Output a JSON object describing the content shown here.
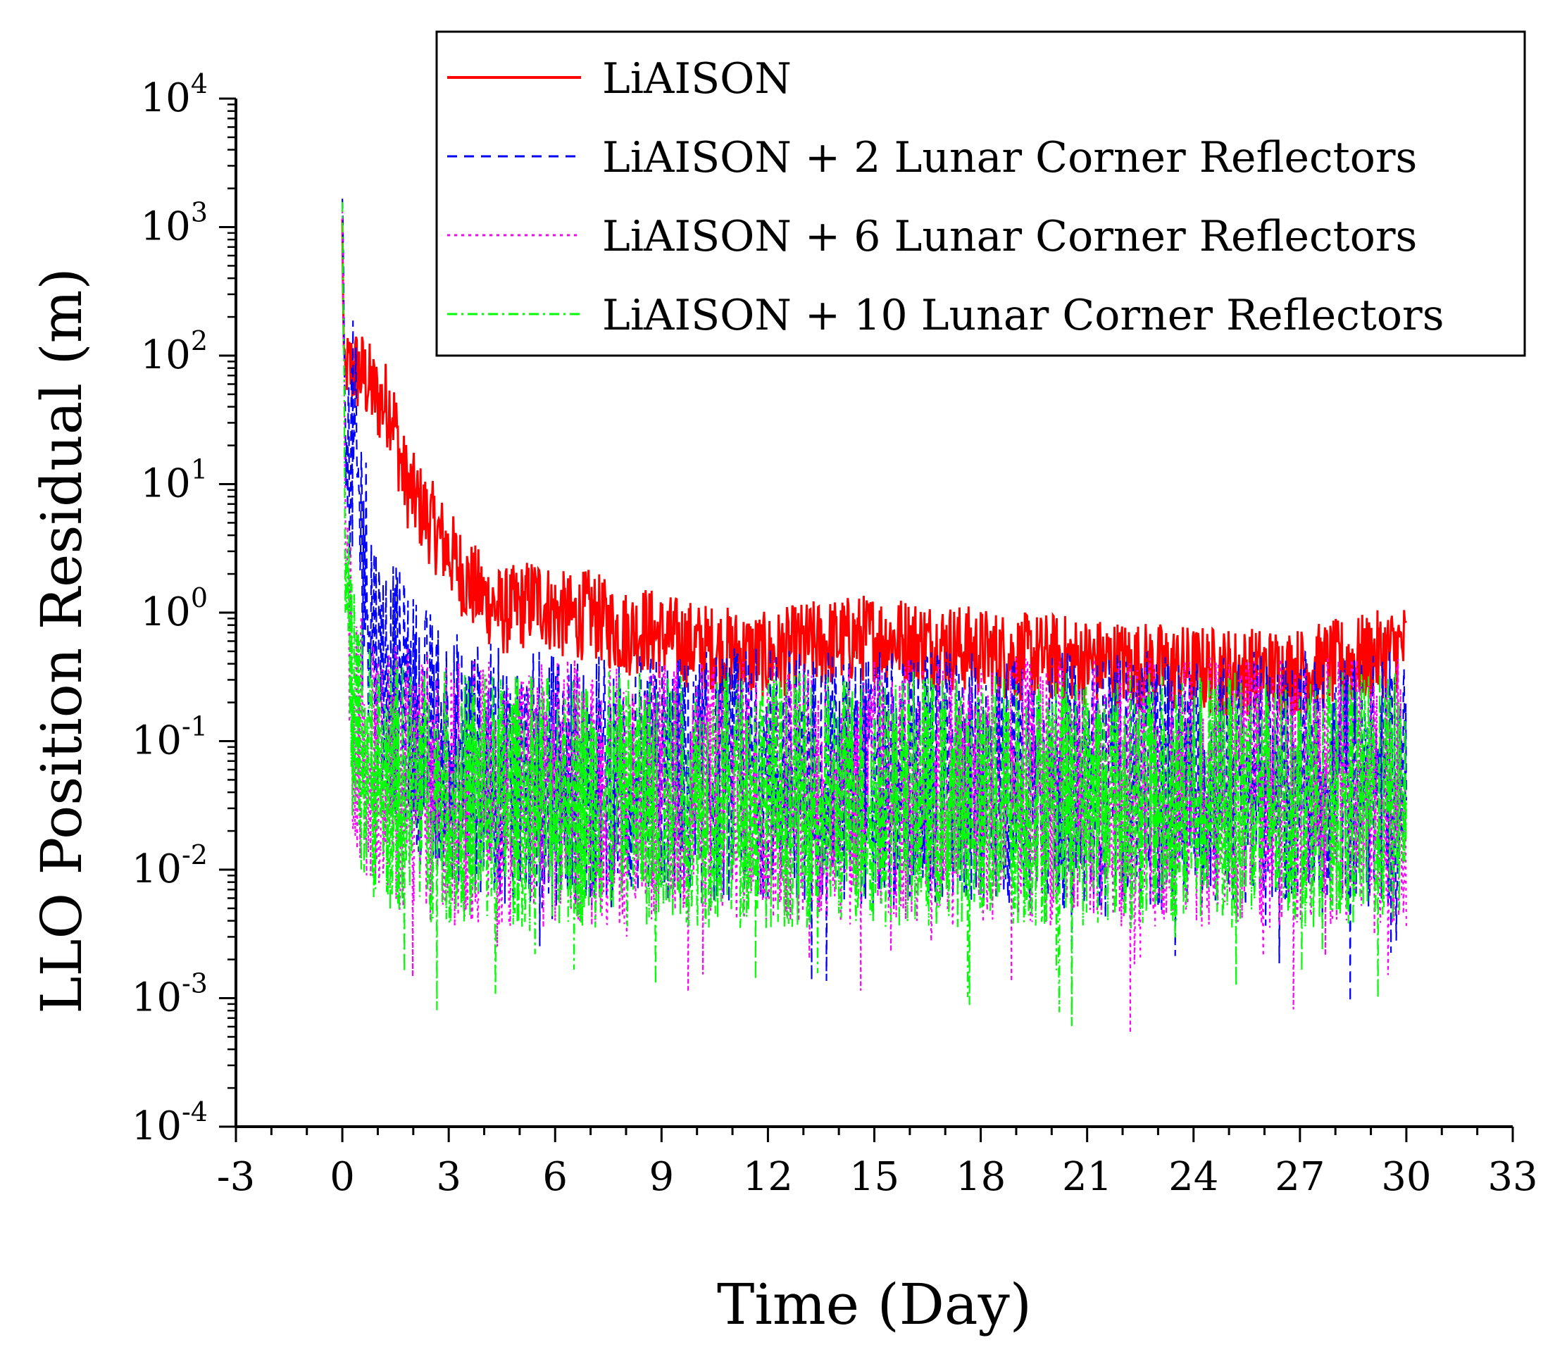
{
  "chart_data": {
    "type": "line",
    "title": "",
    "xlabel": "Time (Day)",
    "ylabel": "LLO Position Residual (m)",
    "xscale": "linear",
    "yscale": "log",
    "xlim": [
      -3,
      33
    ],
    "ylim": [
      0.0001,
      10000
    ],
    "xticks": [
      -3,
      0,
      3,
      6,
      9,
      12,
      15,
      18,
      21,
      24,
      27,
      30,
      33
    ],
    "xtick_labels": [
      "-3",
      "0",
      "3",
      "6",
      "9",
      "12",
      "15",
      "18",
      "21",
      "24",
      "27",
      "30",
      "33"
    ],
    "yticks": [
      {
        "value": 0.0001,
        "base": "10",
        "exp": "-4"
      },
      {
        "value": 0.001,
        "base": "10",
        "exp": "-3"
      },
      {
        "value": 0.01,
        "base": "10",
        "exp": "-2"
      },
      {
        "value": 0.1,
        "base": "10",
        "exp": "-1"
      },
      {
        "value": 1,
        "base": "10",
        "exp": "0"
      },
      {
        "value": 10,
        "base": "10",
        "exp": "1"
      },
      {
        "value": 100,
        "base": "10",
        "exp": "2"
      },
      {
        "value": 1000,
        "base": "10",
        "exp": "3"
      },
      {
        "value": 10000,
        "base": "10",
        "exp": "4"
      }
    ],
    "grid": false,
    "legend_position": "top-right",
    "series": [
      {
        "name": "LiAISON",
        "color": "#ff0000",
        "dash": "solid",
        "x": [
          0,
          0.05,
          0.3,
          0.6,
          1.0,
          1.4,
          1.7,
          2.0,
          2.5,
          3.0,
          3.5,
          4.0,
          4.5,
          5.0,
          5.5,
          6.0,
          6.5,
          7.0,
          7.5,
          8.0,
          8.5,
          9.0,
          10,
          11,
          12,
          13,
          14,
          15,
          16,
          17,
          18,
          19,
          20,
          21,
          22,
          23,
          24,
          25,
          26,
          27,
          28,
          29,
          30
        ],
        "values": [
          1000,
          70,
          80,
          70,
          45,
          40,
          12,
          8,
          5,
          3,
          1.8,
          1.3,
          1.0,
          1.1,
          1.3,
          1.0,
          0.9,
          1.0,
          0.8,
          0.7,
          0.75,
          0.65,
          0.55,
          0.5,
          0.45,
          0.55,
          0.6,
          0.65,
          0.6,
          0.55,
          0.5,
          0.45,
          0.45,
          0.42,
          0.4,
          0.38,
          0.36,
          0.35,
          0.35,
          0.35,
          0.4,
          0.45,
          0.55
        ]
      },
      {
        "name": "LiAISON + 2 Lunar Corner Reflectors",
        "color": "#0000ff",
        "dash": "dashed",
        "x": [
          0,
          0.1,
          0.3,
          0.6,
          1.0,
          1.5,
          2,
          3,
          4,
          5,
          6,
          8,
          10,
          12,
          14,
          16,
          18,
          20,
          22,
          24,
          26,
          28,
          30
        ],
        "values": [
          2000,
          15,
          20,
          3,
          0.4,
          0.25,
          0.15,
          0.08,
          0.06,
          0.05,
          0.05,
          0.05,
          0.05,
          0.06,
          0.05,
          0.05,
          0.05,
          0.05,
          0.05,
          0.05,
          0.05,
          0.05,
          0.05
        ]
      },
      {
        "name": "LiAISON + 6 Lunar Corner Reflectors",
        "color": "#ff00ff",
        "dash": "dotted",
        "x": [
          0,
          0.1,
          0.3,
          0.6,
          1.0,
          2,
          3,
          4,
          6,
          8,
          10,
          12,
          14,
          16,
          18,
          20,
          22,
          24,
          26,
          28,
          30
        ],
        "values": [
          1500,
          3,
          0.2,
          0.1,
          0.06,
          0.05,
          0.04,
          0.04,
          0.04,
          0.04,
          0.04,
          0.04,
          0.04,
          0.04,
          0.04,
          0.04,
          0.04,
          0.04,
          0.04,
          0.04,
          0.04
        ]
      },
      {
        "name": "LiAISON + 10 Lunar Corner Reflectors",
        "color": "#00ff00",
        "dash": "dashdot",
        "x": [
          0,
          0.1,
          0.3,
          0.6,
          1.0,
          2,
          3,
          4,
          6,
          8,
          10,
          12,
          14,
          16,
          18,
          20,
          22,
          24,
          26,
          28,
          30
        ],
        "values": [
          1500,
          2,
          0.15,
          0.08,
          0.05,
          0.04,
          0.035,
          0.035,
          0.035,
          0.035,
          0.035,
          0.035,
          0.035,
          0.035,
          0.035,
          0.035,
          0.035,
          0.035,
          0.035,
          0.035,
          0.035
        ]
      }
    ]
  }
}
